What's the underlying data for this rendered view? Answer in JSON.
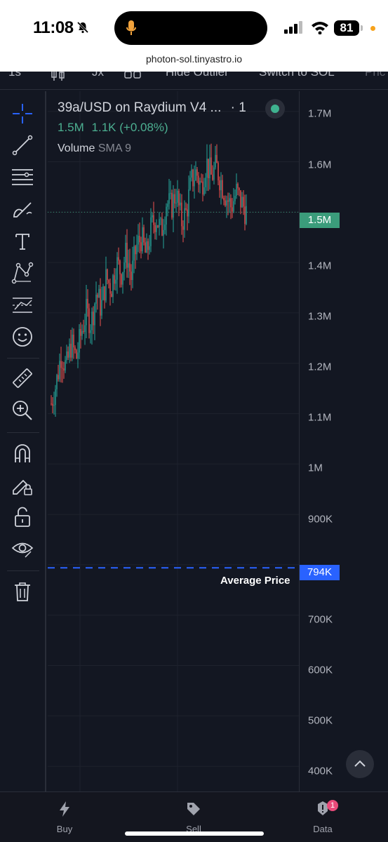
{
  "status_bar": {
    "time": "11:08",
    "battery": "81"
  },
  "browser": {
    "url": "photon-sol.tinyastro.io"
  },
  "toolbar": {
    "interval": "1s",
    "indicators": "Jx",
    "hide_outlier": "Hide Outlier",
    "switch": "Switch to SOL",
    "price": "Pric"
  },
  "legend": {
    "title": "39a/USD on Raydium V4 ...",
    "interval": "· 1",
    "price": "1.5M",
    "change": "1.1K (+0.08%)",
    "volume_label": "Volume",
    "volume_indicator": "SMA 9"
  },
  "price_scale": {
    "ticks": [
      "1.7M",
      "1.6M",
      "1.4M",
      "1.3M",
      "1.2M",
      "1.1M",
      "1M",
      "900K",
      "700K",
      "600K",
      "500K",
      "400K"
    ],
    "current_price_label": "1.5M",
    "average_price_label": "794K"
  },
  "average_price": {
    "label": "Average Price"
  },
  "bottom_nav": {
    "items": [
      {
        "label": "Buy",
        "icon": "lightning-icon"
      },
      {
        "label": "Sell",
        "icon": "tag-icon"
      },
      {
        "label": "Data",
        "icon": "alert-icon",
        "badge": "1"
      }
    ]
  },
  "colors": {
    "up": "#26a69a",
    "down": "#ef5350",
    "accent": "#2962ff",
    "current_price_bg": "#3b9c7b",
    "average_price_bg": "#2962ff"
  },
  "chart_data": {
    "type": "candlestick",
    "y_unit": "USD",
    "y_range": [
      350000,
      1740000
    ],
    "last_price": 1500000,
    "average_price": 794000,
    "series_close": [
      1120000,
      1160000,
      1220000,
      1190000,
      1240000,
      1210000,
      1260000,
      1300000,
      1280000,
      1340000,
      1310000,
      1370000,
      1350000,
      1400000,
      1380000,
      1420000,
      1370000,
      1430000,
      1450000,
      1410000,
      1470000,
      1490000,
      1460000,
      1520000,
      1510000,
      1540000,
      1480000,
      1500000,
      1560000,
      1580000,
      1550000,
      1600000,
      1570000,
      1590000,
      1560000,
      1530000,
      1510000,
      1540000,
      1520000,
      1500000
    ]
  }
}
